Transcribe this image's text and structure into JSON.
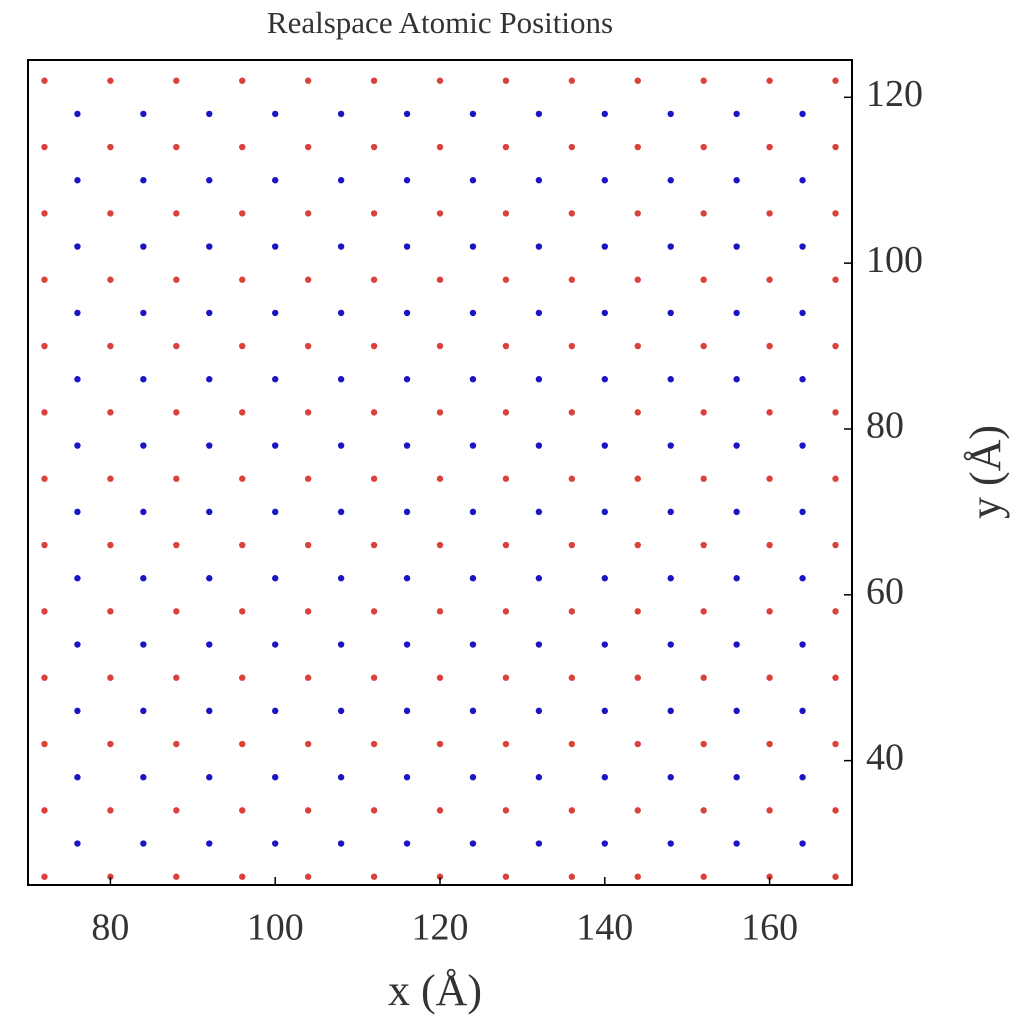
{
  "chart_data": {
    "type": "scatter",
    "title": "Realspace Atomic Positions",
    "x_label": "x (Å)",
    "y_label": "y (Å)",
    "xlim": [
      70,
      170
    ],
    "ylim": [
      25,
      124.5
    ],
    "xticks": [
      80,
      100,
      120,
      140,
      160
    ],
    "yticks": [
      40,
      60,
      80,
      100,
      120
    ],
    "grid": false,
    "y_axis_side": "right",
    "series": [
      {
        "color": "#d9413a",
        "x": [
          72,
          80,
          88,
          96,
          104,
          112,
          120,
          128,
          136,
          144,
          152,
          160,
          168,
          72,
          80,
          88,
          96,
          104,
          112,
          120,
          128,
          136,
          144,
          152,
          160,
          168,
          72,
          80,
          88,
          96,
          104,
          112,
          120,
          128,
          136,
          144,
          152,
          160,
          168,
          72,
          80,
          88,
          96,
          104,
          112,
          120,
          128,
          136,
          144,
          152,
          160,
          168,
          72,
          80,
          88,
          96,
          104,
          112,
          120,
          128,
          136,
          144,
          152,
          160,
          168,
          72,
          80,
          88,
          96,
          104,
          112,
          120,
          128,
          136,
          144,
          152,
          160,
          168,
          72,
          80,
          88,
          96,
          104,
          112,
          120,
          128,
          136,
          144,
          152,
          160,
          168,
          72,
          80,
          88,
          96,
          104,
          112,
          120,
          128,
          136,
          144,
          152,
          160,
          168,
          72,
          80,
          88,
          96,
          104,
          112,
          120,
          128,
          136,
          144,
          152,
          160,
          168,
          72,
          80,
          88,
          96,
          104,
          112,
          120,
          128,
          136,
          144,
          152,
          160,
          168,
          72,
          80,
          88,
          96,
          104,
          112,
          120,
          128,
          136,
          144,
          152,
          160,
          168,
          72,
          80,
          88,
          96,
          104,
          112,
          120,
          128,
          136,
          144,
          152,
          160,
          168,
          72,
          80,
          88,
          96,
          104,
          112,
          120,
          128,
          136,
          144,
          152,
          160,
          168
        ],
        "y": [
          26,
          26,
          26,
          26,
          26,
          26,
          26,
          26,
          26,
          26,
          26,
          26,
          26,
          34,
          34,
          34,
          34,
          34,
          34,
          34,
          34,
          34,
          34,
          34,
          34,
          34,
          42,
          42,
          42,
          42,
          42,
          42,
          42,
          42,
          42,
          42,
          42,
          42,
          42,
          50,
          50,
          50,
          50,
          50,
          50,
          50,
          50,
          50,
          50,
          50,
          50,
          50,
          58,
          58,
          58,
          58,
          58,
          58,
          58,
          58,
          58,
          58,
          58,
          58,
          58,
          66,
          66,
          66,
          66,
          66,
          66,
          66,
          66,
          66,
          66,
          66,
          66,
          66,
          74,
          74,
          74,
          74,
          74,
          74,
          74,
          74,
          74,
          74,
          74,
          74,
          74,
          82,
          82,
          82,
          82,
          82,
          82,
          82,
          82,
          82,
          82,
          82,
          82,
          82,
          90,
          90,
          90,
          90,
          90,
          90,
          90,
          90,
          90,
          90,
          90,
          90,
          90,
          98,
          98,
          98,
          98,
          98,
          98,
          98,
          98,
          98,
          98,
          98,
          98,
          98,
          106,
          106,
          106,
          106,
          106,
          106,
          106,
          106,
          106,
          106,
          106,
          106,
          106,
          114,
          114,
          114,
          114,
          114,
          114,
          114,
          114,
          114,
          114,
          114,
          114,
          114,
          122,
          122,
          122,
          122,
          122,
          122,
          122,
          122,
          122,
          122,
          122,
          122,
          122
        ]
      },
      {
        "color": "#1a14c4",
        "x": [
          76,
          84,
          92,
          100,
          108,
          116,
          124,
          132,
          140,
          148,
          156,
          164,
          76,
          84,
          92,
          100,
          108,
          116,
          124,
          132,
          140,
          148,
          156,
          164,
          76,
          84,
          92,
          100,
          108,
          116,
          124,
          132,
          140,
          148,
          156,
          164,
          76,
          84,
          92,
          100,
          108,
          116,
          124,
          132,
          140,
          148,
          156,
          164,
          76,
          84,
          92,
          100,
          108,
          116,
          124,
          132,
          140,
          148,
          156,
          164,
          76,
          84,
          92,
          100,
          108,
          116,
          124,
          132,
          140,
          148,
          156,
          164,
          76,
          84,
          92,
          100,
          108,
          116,
          124,
          132,
          140,
          148,
          156,
          164,
          76,
          84,
          92,
          100,
          108,
          116,
          124,
          132,
          140,
          148,
          156,
          164,
          76,
          84,
          92,
          100,
          108,
          116,
          124,
          132,
          140,
          148,
          156,
          164,
          76,
          84,
          92,
          100,
          108,
          116,
          124,
          132,
          140,
          148,
          156,
          164,
          76,
          84,
          92,
          100,
          108,
          116,
          124,
          132,
          140,
          148,
          156,
          164,
          76,
          84,
          92,
          100,
          108,
          116,
          124,
          132,
          140,
          148,
          156,
          164
        ],
        "y": [
          30,
          30,
          30,
          30,
          30,
          30,
          30,
          30,
          30,
          30,
          30,
          30,
          38,
          38,
          38,
          38,
          38,
          38,
          38,
          38,
          38,
          38,
          38,
          38,
          46,
          46,
          46,
          46,
          46,
          46,
          46,
          46,
          46,
          46,
          46,
          46,
          54,
          54,
          54,
          54,
          54,
          54,
          54,
          54,
          54,
          54,
          54,
          54,
          62,
          62,
          62,
          62,
          62,
          62,
          62,
          62,
          62,
          62,
          62,
          62,
          70,
          70,
          70,
          70,
          70,
          70,
          70,
          70,
          70,
          70,
          70,
          70,
          78,
          78,
          78,
          78,
          78,
          78,
          78,
          78,
          78,
          78,
          78,
          78,
          86,
          86,
          86,
          86,
          86,
          86,
          86,
          86,
          86,
          86,
          86,
          86,
          94,
          94,
          94,
          94,
          94,
          94,
          94,
          94,
          94,
          94,
          94,
          94,
          102,
          102,
          102,
          102,
          102,
          102,
          102,
          102,
          102,
          102,
          102,
          102,
          110,
          110,
          110,
          110,
          110,
          110,
          110,
          110,
          110,
          110,
          110,
          110,
          118,
          118,
          118,
          118,
          118,
          118,
          118,
          118,
          118,
          118,
          118,
          118
        ]
      }
    ]
  }
}
